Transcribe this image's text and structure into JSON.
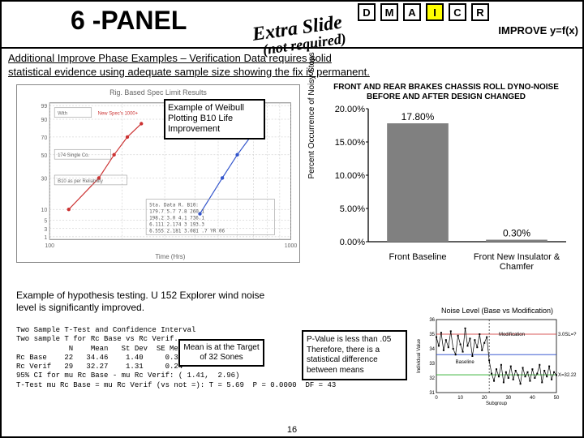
{
  "header": {
    "title": "6 -PANEL",
    "dmaicr": [
      "D",
      "M",
      "A",
      "I",
      "C",
      "R"
    ],
    "active_index": 3,
    "improve_eq": "IMPROVE y=f(x)",
    "extra_slide_l1": "Extra Slide",
    "extra_slide_l2": "(not required)"
  },
  "subtitle": "Additional Improve Phase Examples – Verification Data requires solid\nstatistical evidence using adequate sample size showing the fix is permanent.",
  "weibull": {
    "plot_title": "Rig. Based Spec Limit Results",
    "label": "Example of Weibull Plotting B10 Life Improvement",
    "ytick_labels": [
      "99",
      "90",
      "70",
      "50",
      "30",
      "10",
      "5",
      "3",
      "1"
    ],
    "xtick_labels": [
      "100",
      "1000"
    ],
    "xaxis_label": "Time (Hrs)",
    "legend1": "With",
    "legend2": "New Spec's 1000+",
    "legend3": "174 Single Co.",
    "legend4": "B10 as per Reliability",
    "stats_header": "Sta.  Data  R.  B10:",
    "stats_lines": [
      "179.7  5.7  7.8 260.1",
      "198.2 3.0  4.1 736.1",
      "6.111 2.174 3 193.3",
      "6.555 2.181 3.081 .7 YR 06"
    ],
    "series1": {
      "color": "#cc3333",
      "points": [
        [
          120,
          10
        ],
        [
          160,
          30
        ],
        [
          185,
          50
        ],
        [
          210,
          70
        ],
        [
          240,
          85
        ]
      ]
    },
    "series2": {
      "color": "#3355cc",
      "points": [
        [
          420,
          8
        ],
        [
          520,
          30
        ],
        [
          600,
          50
        ],
        [
          680,
          70
        ],
        [
          760,
          88
        ]
      ]
    },
    "axis_color": "#808080",
    "grid_color": "#c0c0c0"
  },
  "barchart": {
    "title": "FRONT AND REAR BRAKES CHASSIS ROLL DYNO-NOISE\nBEFORE AND AFTER DESIGN CHANGED",
    "ylabel": "Percent Occurrence of Noisy Stops",
    "categories": [
      "Front Baseline",
      "Front New Insulator & Chamfer"
    ],
    "values": [
      17.8,
      0.3
    ],
    "value_labels": [
      "17.80%",
      "0.30%"
    ],
    "ytick_labels": [
      "20.00%",
      "15.00%",
      "10.00%",
      "5.00%",
      "0.00%"
    ],
    "ymax": 20,
    "bar_color": "#808080",
    "axis_color": "#000000"
  },
  "hypothesis": {
    "text": "Example of hypothesis testing. U 152 Explorer wind noise level is significantly improved.",
    "ttest_header": "Two Sample T-Test and Confidence Interval",
    "ttest_sub": "Two sample T for Rc Base vs Rc Verif.",
    "ttest_cols": "            N    Mean   St Dev  SE Mean",
    "ttest_r1": "Rc Base    22   34.46    1.40     0.30",
    "ttest_r2": "Rc Verif   29   32.27    1.31     0.24",
    "ttest_ci": "95% CI for mu Rc Base - mu Rc Verif: ( 1.41,  2.96)",
    "ttest_t": "T-Test mu Rc Base = mu Rc Verif (vs not =): T = 5.69  P = 0.0000  DF = 43",
    "mean_box": "Mean is at the Target of 32 Sones",
    "pval_box": "P-Value is less than .05 Therefore, there is a statistical difference between means"
  },
  "runchart": {
    "title": "Noise Level (Base vs Modification)",
    "ylabel": "Individual Value",
    "xlabel": "Subgroup",
    "label1": "Baseline",
    "label2": "Modification",
    "right_label1": "3.0SL=?",
    "right_label2": "X=32.22",
    "xtick_labels": [
      "0",
      "10",
      "20",
      "30",
      "40",
      "50"
    ],
    "ytick_labels": [
      "31",
      "32",
      "33",
      "34",
      "35",
      "36"
    ],
    "line_color": "#000000",
    "ref_colors": [
      "#cc2222",
      "#2244cc",
      "#22aa22"
    ],
    "points": [
      34.8,
      34.2,
      35.1,
      33.9,
      34.6,
      34.1,
      35.2,
      34.0,
      33.6,
      34.9,
      34.3,
      33.8,
      35.4,
      34.2,
      34.7,
      33.5,
      34.6,
      34.1,
      35.0,
      33.9,
      34.4,
      34.8,
      33.2,
      32.3,
      31.8,
      32.6,
      32.1,
      32.9,
      31.7,
      32.4,
      32.0,
      32.8,
      31.9,
      32.5,
      32.2,
      31.6,
      32.7,
      32.1,
      32.4,
      31.8,
      32.6,
      32.0,
      32.3,
      32.9,
      31.7,
      32.5,
      32.1,
      32.8,
      31.9,
      32.4,
      32.2
    ]
  },
  "pagenum": "16"
}
